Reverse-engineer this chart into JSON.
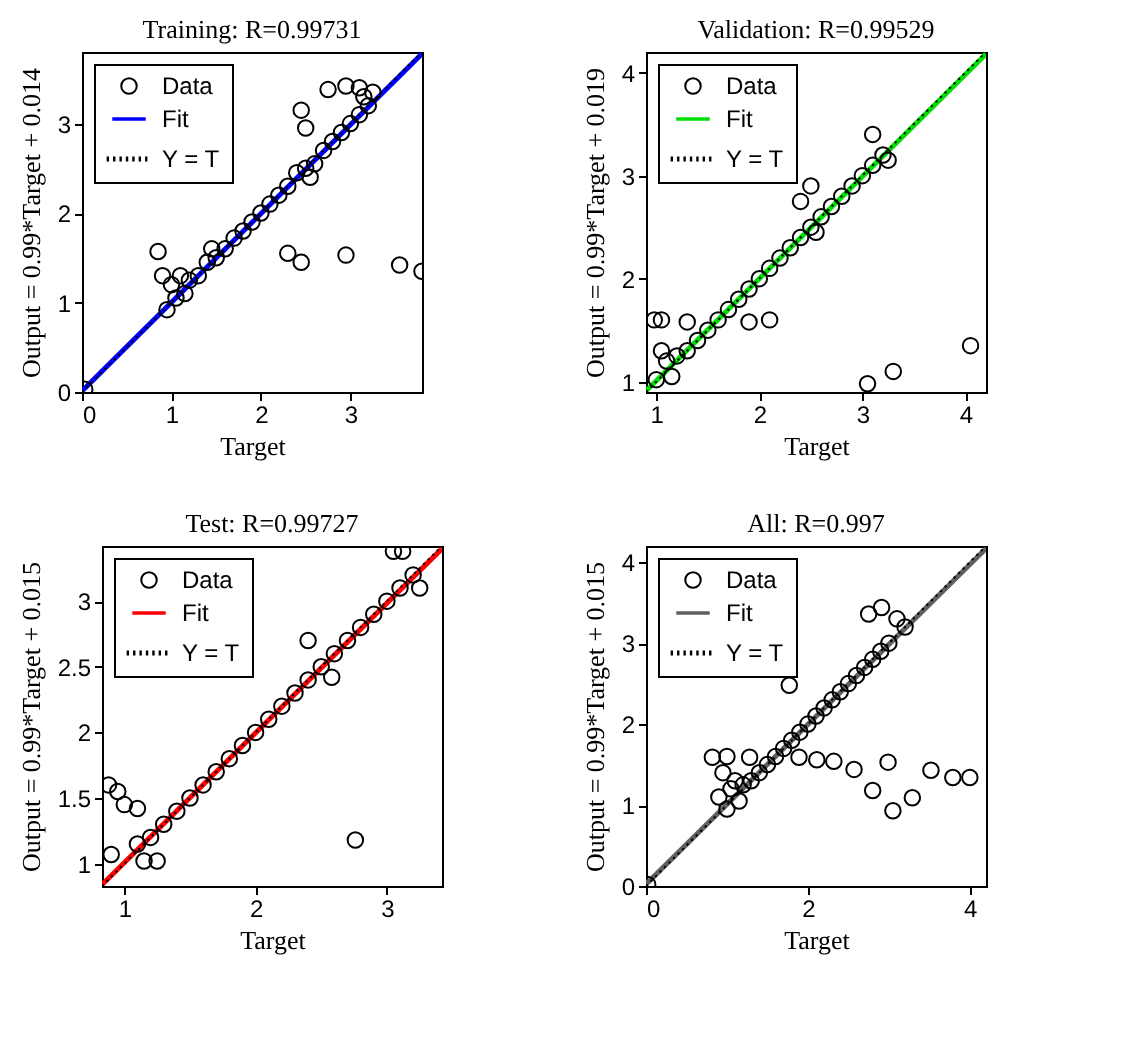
{
  "chart_data": [
    {
      "type": "scatter",
      "title": "Training: R=0.99731",
      "xlabel": "Target",
      "ylabel": "Output = 0.99*Target + 0.014",
      "xlim": [
        0,
        3.8
      ],
      "ylim": [
        0,
        3.8
      ],
      "xticks": [
        0,
        1,
        2,
        3
      ],
      "yticks": [
        0,
        1,
        2,
        3
      ],
      "legend": "top left",
      "series": [
        {
          "name": "Data",
          "marker": "circle",
          "color": "#000000",
          "x": [
            0.03,
            0.85,
            0.9,
            0.95,
            1.0,
            1.05,
            1.1,
            1.15,
            1.2,
            1.3,
            1.4,
            1.45,
            1.5,
            1.6,
            1.7,
            1.8,
            1.9,
            2.0,
            2.1,
            2.2,
            2.3,
            2.4,
            2.45,
            2.5,
            2.5,
            2.55,
            2.6,
            2.7,
            2.8,
            2.9,
            3.0,
            3.1,
            3.1,
            3.15,
            3.2,
            3.25,
            2.3,
            2.45,
            2.95,
            3.55,
            3.8,
            2.75,
            2.95
          ],
          "values": [
            0.03,
            1.57,
            1.3,
            0.92,
            1.2,
            1.05,
            1.3,
            1.1,
            1.25,
            1.3,
            1.45,
            1.6,
            1.5,
            1.6,
            1.72,
            1.8,
            1.9,
            2.0,
            2.1,
            2.2,
            2.3,
            2.45,
            3.15,
            2.5,
            2.95,
            2.4,
            2.55,
            2.7,
            2.8,
            2.9,
            3.0,
            3.1,
            3.4,
            3.3,
            3.2,
            3.35,
            1.55,
            1.45,
            1.53,
            1.42,
            1.35,
            3.38,
            3.42
          ]
        },
        {
          "name": "Fit",
          "type": "line",
          "color": "#0000ff",
          "x": [
            0,
            3.8
          ],
          "values": [
            0.01,
            3.78
          ]
        },
        {
          "name": "Y = T",
          "type": "line",
          "line_style": "dotted",
          "color": "#000000",
          "x": [
            0,
            3.8
          ],
          "values": [
            0,
            3.8
          ]
        }
      ]
    },
    {
      "type": "scatter",
      "title": "Validation: R=0.99529",
      "xlabel": "Target",
      "ylabel": "Output = 0.99*Target + 0.019",
      "xlim": [
        0.9,
        4.2
      ],
      "ylim": [
        0.9,
        4.2
      ],
      "xticks": [
        1,
        2,
        3,
        4
      ],
      "yticks": [
        1,
        2,
        3,
        4
      ],
      "legend": "top left",
      "series": [
        {
          "name": "Data",
          "marker": "circle",
          "color": "#000000",
          "x": [
            0.98,
            1.05,
            1.3,
            1.05,
            1.0,
            1.1,
            1.15,
            1.2,
            1.3,
            1.4,
            1.5,
            1.6,
            1.7,
            1.8,
            1.9,
            2.0,
            2.1,
            2.2,
            2.3,
            2.4,
            2.5,
            2.55,
            2.6,
            2.7,
            2.8,
            2.9,
            3.0,
            3.1,
            3.2,
            3.25,
            1.9,
            2.1,
            3.05,
            3.3,
            4.05,
            3.1,
            2.4,
            2.5
          ],
          "values": [
            1.6,
            1.6,
            1.58,
            1.3,
            1.02,
            1.2,
            1.05,
            1.25,
            1.3,
            1.4,
            1.5,
            1.6,
            1.7,
            1.8,
            1.9,
            2.0,
            2.1,
            2.2,
            2.3,
            2.4,
            2.5,
            2.45,
            2.6,
            2.7,
            2.8,
            2.9,
            3.0,
            3.1,
            3.2,
            3.15,
            1.58,
            1.6,
            0.98,
            1.1,
            1.35,
            3.4,
            2.75,
            2.9
          ]
        },
        {
          "name": "Fit",
          "type": "line",
          "color": "#00e000",
          "x": [
            0.9,
            4.2
          ],
          "values": [
            0.91,
            4.18
          ]
        },
        {
          "name": "Y = T",
          "type": "line",
          "line_style": "dotted",
          "color": "#000000",
          "x": [
            0.9,
            4.2
          ],
          "values": [
            0.9,
            4.2
          ]
        }
      ]
    },
    {
      "type": "scatter",
      "title": "Test: R=0.99727",
      "xlabel": "Target",
      "ylabel": "Output = 0.99*Target + 0.015",
      "xlim": [
        0.83,
        3.42
      ],
      "ylim": [
        0.83,
        3.42
      ],
      "xticks": [
        1,
        2,
        3
      ],
      "yticks": [
        1,
        1.5,
        2,
        2.5,
        3
      ],
      "legend": "top left",
      "series": [
        {
          "name": "Data",
          "marker": "circle",
          "color": "#000000",
          "x": [
            0.88,
            0.95,
            1.0,
            0.9,
            1.1,
            1.15,
            1.25,
            1.1,
            1.2,
            1.3,
            1.4,
            1.5,
            1.6,
            1.7,
            1.8,
            1.9,
            2.0,
            2.1,
            2.2,
            2.3,
            2.4,
            2.5,
            2.58,
            2.6,
            2.7,
            2.8,
            2.9,
            3.0,
            3.1,
            3.2,
            3.25,
            3.05,
            3.12,
            2.76,
            2.4
          ],
          "values": [
            1.6,
            1.55,
            1.45,
            1.07,
            1.42,
            1.02,
            1.02,
            1.15,
            1.2,
            1.3,
            1.4,
            1.5,
            1.6,
            1.7,
            1.8,
            1.9,
            2.0,
            2.1,
            2.2,
            2.3,
            2.4,
            2.5,
            2.42,
            2.6,
            2.7,
            2.8,
            2.9,
            3.0,
            3.1,
            3.2,
            3.1,
            3.38,
            3.38,
            1.18,
            2.7
          ]
        },
        {
          "name": "Fit",
          "type": "line",
          "color": "#ff0000",
          "x": [
            0.83,
            3.42
          ],
          "values": [
            0.84,
            3.4
          ]
        },
        {
          "name": "Y = T",
          "type": "line",
          "line_style": "dotted",
          "color": "#000000",
          "x": [
            0.83,
            3.42
          ],
          "values": [
            0.83,
            3.42
          ]
        }
      ]
    },
    {
      "type": "scatter",
      "title": "All: R=0.997",
      "xlabel": "Target",
      "ylabel": "Output = 0.99*Target + 0.015",
      "xlim": [
        0,
        4.2
      ],
      "ylim": [
        0,
        4.2
      ],
      "xticks": [
        0,
        2,
        4
      ],
      "yticks": [
        0,
        1,
        2,
        3,
        4
      ],
      "legend": "top left",
      "series": [
        {
          "name": "Data",
          "marker": "circle",
          "color": "#000000",
          "x": [
            0.02,
            0.82,
            1.0,
            1.28,
            0.9,
            0.95,
            1.0,
            1.05,
            1.1,
            1.15,
            1.2,
            1.3,
            1.4,
            1.5,
            1.6,
            1.7,
            1.8,
            1.9,
            2.0,
            2.1,
            2.2,
            2.3,
            2.4,
            2.5,
            2.6,
            2.7,
            2.8,
            2.9,
            3.0,
            3.1,
            3.2,
            1.89,
            2.11,
            2.32,
            2.57,
            2.8,
            2.99,
            3.05,
            3.29,
            3.52,
            3.79,
            4.0,
            1.77,
            2.75,
            2.91
          ],
          "values": [
            0.02,
            1.59,
            1.6,
            1.59,
            1.1,
            1.4,
            0.95,
            1.2,
            1.3,
            1.05,
            1.25,
            1.3,
            1.4,
            1.5,
            1.6,
            1.7,
            1.8,
            1.9,
            2.0,
            2.1,
            2.2,
            2.3,
            2.4,
            2.5,
            2.6,
            2.7,
            2.8,
            2.9,
            3.0,
            3.3,
            3.2,
            1.59,
            1.56,
            1.54,
            1.44,
            1.18,
            1.53,
            0.93,
            1.09,
            1.43,
            1.34,
            1.34,
            2.48,
            3.36,
            3.44
          ]
        },
        {
          "name": "Fit",
          "type": "line",
          "color": "#606060",
          "x": [
            0,
            4.2
          ],
          "values": [
            0.02,
            4.17
          ]
        },
        {
          "name": "Y = T",
          "type": "line",
          "line_style": "dotted",
          "color": "#000000",
          "x": [
            0,
            4.2
          ],
          "values": [
            0,
            4.2
          ]
        }
      ]
    }
  ]
}
